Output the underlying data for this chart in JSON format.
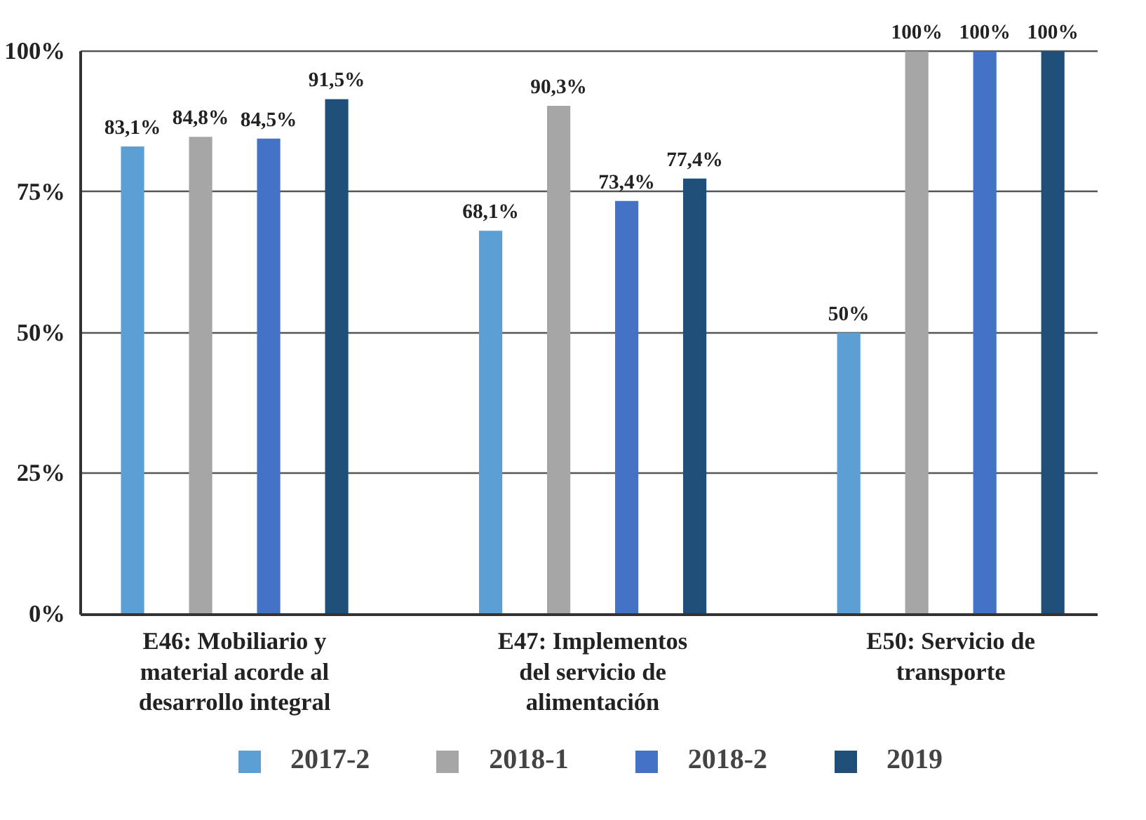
{
  "chart_data": {
    "type": "bar",
    "categories": [
      "E46: Mobiliario y material acorde al desarrollo integral",
      "E47: Implementos del servicio de alimentación",
      "E50: Servicio de transporte"
    ],
    "series": [
      {
        "name": "2017-2",
        "color": "#5b9fd4",
        "values": [
          83.1,
          68.1,
          50
        ],
        "value_labels": [
          "83,1%",
          "68,1%",
          "50%"
        ]
      },
      {
        "name": "2018-1",
        "color": "#a6a6a6",
        "values": [
          84.8,
          90.3,
          100
        ],
        "value_labels": [
          "84,8%",
          "90,3%",
          "100%"
        ]
      },
      {
        "name": "2018-2",
        "color": "#4472c4",
        "values": [
          84.5,
          73.4,
          100
        ],
        "value_labels": [
          "84,5%",
          "73,4%",
          "100%"
        ]
      },
      {
        "name": "2019",
        "color": "#1f4e79",
        "values": [
          91.5,
          77.4,
          100
        ],
        "value_labels": [
          "91,5%",
          "77,4%",
          "100%"
        ]
      }
    ],
    "ylim": [
      0,
      100
    ],
    "yticks": [
      {
        "value": 0,
        "label": "0%"
      },
      {
        "value": 25,
        "label": "25%"
      },
      {
        "value": 50,
        "label": "50%"
      },
      {
        "value": 75,
        "label": "75%"
      },
      {
        "value": 100,
        "label": "100%"
      }
    ],
    "grid": "y",
    "legend": "bottom"
  }
}
